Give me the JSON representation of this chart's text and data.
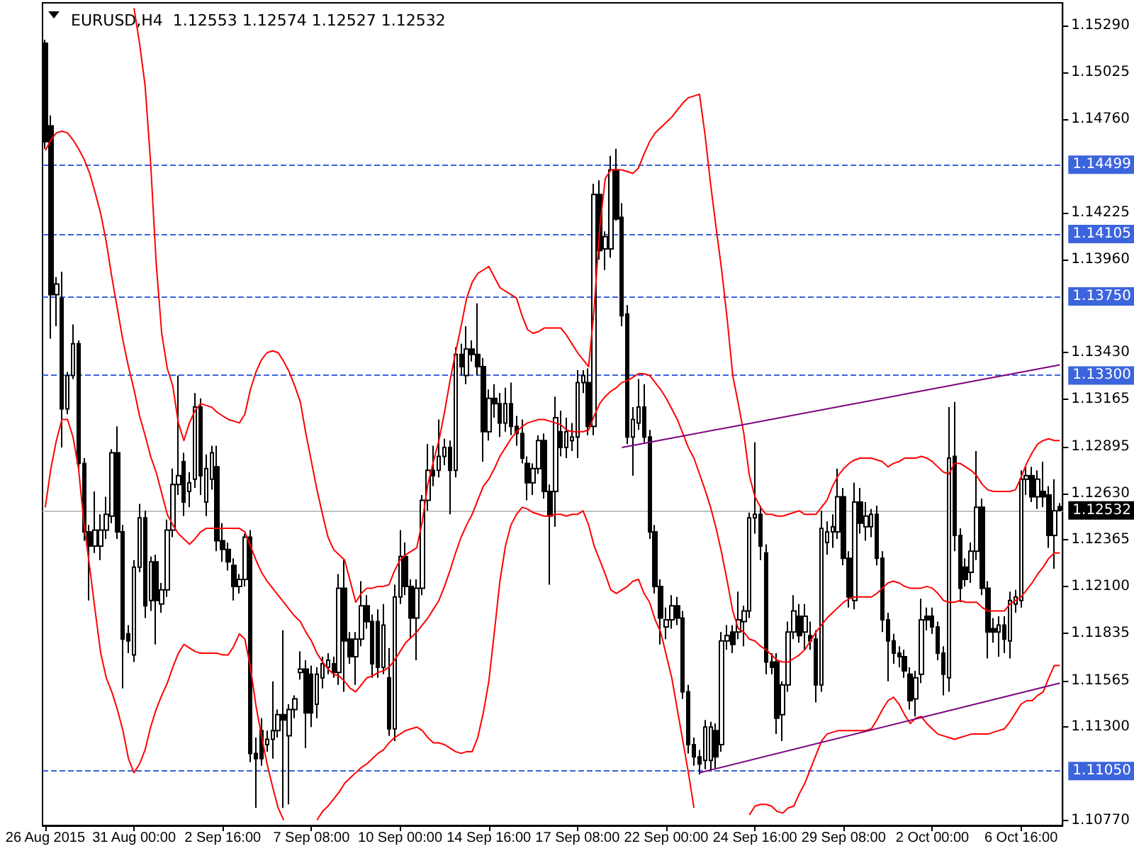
{
  "chart_data": {
    "type": "candlestick",
    "title": "EURUSD,H4  1.12553 1.12574 1.12527 1.12532",
    "color": "#000000",
    "marker": "none",
    "categories": [
      "26 Aug 2015",
      null,
      null,
      null,
      null,
      null,
      null,
      null,
      null,
      null,
      null,
      null,
      null,
      null,
      null,
      null,
      "31 Aug 00:00",
      null,
      null,
      null,
      null,
      null,
      null,
      null,
      null,
      null,
      null,
      null,
      null,
      null,
      null,
      null,
      "2 Sep 16:00",
      null,
      null,
      null,
      null,
      null,
      null,
      null,
      null,
      null,
      null,
      null,
      null,
      null,
      null,
      null,
      "7 Sep 08:00",
      null,
      null,
      null,
      null,
      null,
      null,
      null,
      null,
      null,
      null,
      null,
      null,
      null,
      null,
      null,
      "10 Sep 00:00",
      null,
      null,
      null,
      null,
      null,
      null,
      null,
      null,
      null,
      null,
      null,
      null,
      null,
      null,
      null,
      "14 Sep 16:00",
      null,
      null,
      null,
      null,
      null,
      null,
      null,
      null,
      null,
      null,
      null,
      null,
      null,
      null,
      null,
      "17 Sep 08:00",
      null,
      null,
      null,
      null,
      null,
      null,
      null,
      null,
      null,
      null,
      null,
      null,
      null,
      null,
      null,
      "22 Sep 00:00",
      null,
      null,
      null,
      null,
      null,
      null,
      null,
      null,
      null,
      null,
      null,
      null,
      null,
      null,
      null,
      "24 Sep 16:00",
      null,
      null,
      null,
      null,
      null,
      null,
      null,
      null,
      null,
      null,
      null,
      null,
      null,
      null,
      null,
      "29 Sep 08:00",
      null,
      null,
      null,
      null,
      null,
      null,
      null,
      null,
      null,
      null,
      null,
      null,
      null,
      null,
      null,
      "2 Oct 00:00",
      null,
      null,
      null,
      null,
      null,
      null,
      null,
      null,
      null,
      null,
      null,
      null,
      null,
      null,
      null,
      "6 Oct 16:00",
      null,
      null,
      null,
      null,
      null,
      null,
      null
    ],
    "ohlc": [
      [
        1.1519,
        1.1521,
        1.1459,
        1.1463
      ],
      [
        1.1472,
        1.1478,
        1.1351,
        1.1376
      ],
      [
        1.1376,
        1.1386,
        1.1358,
        1.1382
      ],
      [
        1.1374,
        1.1389,
        1.1289,
        1.1311
      ],
      [
        1.1311,
        1.1332,
        1.1308,
        1.133
      ],
      [
        1.133,
        1.1359,
        1.1328,
        1.1348
      ],
      [
        1.1348,
        1.135,
        1.1277,
        1.128
      ],
      [
        1.128,
        1.1283,
        1.1236,
        1.1241
      ],
      [
        1.1241,
        1.1245,
        1.1202,
        1.1233
      ],
      [
        1.1233,
        1.1264,
        1.1229,
        1.1242
      ],
      [
        1.1233,
        1.1251,
        1.1225,
        1.1242
      ],
      [
        1.1242,
        1.1261,
        1.1237,
        1.1251
      ],
      [
        1.125,
        1.1288,
        1.1246,
        1.1286
      ],
      [
        1.1286,
        1.1301,
        1.1237,
        1.1241
      ],
      [
        1.1241,
        1.1245,
        1.1152,
        1.118
      ],
      [
        1.1183,
        1.1188,
        1.1172,
        1.1179
      ],
      [
        1.1171,
        1.1225,
        1.1167,
        1.1221
      ],
      [
        1.1221,
        1.1257,
        1.1218,
        1.1249
      ],
      [
        1.1249,
        1.1253,
        1.1192,
        1.1199
      ],
      [
        1.1202,
        1.1227,
        1.1196,
        1.1224
      ],
      [
        1.1224,
        1.1228,
        1.1177,
        1.1202
      ],
      [
        1.12,
        1.1212,
        1.1195,
        1.1208
      ],
      [
        1.1208,
        1.1248,
        1.1204,
        1.1242
      ],
      [
        1.1242,
        1.1277,
        1.1238,
        1.1268
      ],
      [
        1.1268,
        1.133,
        1.1262,
        1.1273
      ],
      [
        1.1281,
        1.1286,
        1.125,
        1.1258
      ],
      [
        1.1264,
        1.1275,
        1.1255,
        1.1269
      ],
      [
        1.1271,
        1.132,
        1.1266,
        1.1312
      ],
      [
        1.1312,
        1.1317,
        1.1262,
        1.1273
      ],
      [
        1.1258,
        1.1285,
        1.125,
        1.1277
      ],
      [
        1.1271,
        1.129,
        1.1265,
        1.1286
      ],
      [
        1.1278,
        1.129,
        1.123,
        1.1236
      ],
      [
        1.1236,
        1.1246,
        1.1224,
        1.1231
      ],
      [
        1.1231,
        1.1235,
        1.1219,
        1.1224
      ],
      [
        1.1222,
        1.1226,
        1.1202,
        1.121
      ],
      [
        1.121,
        1.1217,
        1.1206,
        1.1214
      ],
      [
        1.1214,
        1.124,
        1.121,
        1.1238
      ],
      [
        1.1238,
        1.1242,
        1.111,
        1.1115
      ],
      [
        1.1115,
        1.1124,
        1.1084,
        1.1112
      ],
      [
        1.1128,
        1.1135,
        1.1108,
        1.1112
      ],
      [
        1.112,
        1.1128,
        1.1116,
        1.1123
      ],
      [
        1.1123,
        1.1156,
        1.1112,
        1.1128
      ],
      [
        1.1128,
        1.114,
        1.1124,
        1.1137
      ],
      [
        1.1137,
        1.1185,
        1.1084,
        1.1134
      ],
      [
        1.1125,
        1.1143,
        1.1086,
        1.114
      ],
      [
        1.114,
        1.1148,
        1.1135,
        1.1146
      ],
      [
        1.1161,
        1.1173,
        1.1157,
        1.1163
      ],
      [
        1.1163,
        1.1168,
        1.1118,
        1.1138
      ],
      [
        1.116,
        1.1165,
        1.113,
        1.1138
      ],
      [
        1.1143,
        1.1164,
        1.1135,
        1.116
      ],
      [
        1.1158,
        1.117,
        1.1152,
        1.1166
      ],
      [
        1.1164,
        1.1172,
        1.116,
        1.1168
      ],
      [
        1.1166,
        1.117,
        1.1158,
        1.1161
      ],
      [
        1.1161,
        1.1217,
        1.1154,
        1.1209
      ],
      [
        1.1209,
        1.1225,
        1.115,
        1.1179
      ],
      [
        1.118,
        1.1184,
        1.1166,
        1.117
      ],
      [
        1.117,
        1.1184,
        1.1154,
        1.118
      ],
      [
        1.118,
        1.1213,
        1.1176,
        1.1199
      ],
      [
        1.1199,
        1.1205,
        1.1186,
        1.119
      ],
      [
        1.119,
        1.1194,
        1.1158,
        1.1166
      ],
      [
        1.119,
        1.1197,
        1.1158,
        1.1164
      ],
      [
        1.1164,
        1.12,
        1.116,
        1.1188
      ],
      [
        1.1158,
        1.1175,
        1.1125,
        1.1129
      ],
      [
        1.1129,
        1.1211,
        1.1122,
        1.1204
      ],
      [
        1.1204,
        1.1242,
        1.12,
        1.1227
      ],
      [
        1.1227,
        1.1235,
        1.1205,
        1.121
      ],
      [
        1.121,
        1.1214,
        1.118,
        1.1192
      ],
      [
        1.1192,
        1.1214,
        1.1168,
        1.1209
      ],
      [
        1.1209,
        1.1262,
        1.1205,
        1.1259
      ],
      [
        1.1259,
        1.1291,
        1.1253,
        1.1276
      ],
      [
        1.1276,
        1.129,
        1.1267,
        1.1273
      ],
      [
        1.1276,
        1.1305,
        1.1272,
        1.1284
      ],
      [
        1.1284,
        1.1294,
        1.1279,
        1.1289
      ],
      [
        1.1289,
        1.1293,
        1.1251,
        1.1276
      ],
      [
        1.1276,
        1.1346,
        1.1272,
        1.1342
      ],
      [
        1.1342,
        1.1348,
        1.133,
        1.1335
      ],
      [
        1.133,
        1.1358,
        1.1325,
        1.1345
      ],
      [
        1.1345,
        1.135,
        1.1338,
        1.1342
      ],
      [
        1.1342,
        1.1371,
        1.133,
        1.1335
      ],
      [
        1.1335,
        1.134,
        1.1281,
        1.1298
      ],
      [
        1.1298,
        1.1322,
        1.1293,
        1.1317
      ],
      [
        1.1317,
        1.1325,
        1.1306,
        1.1314
      ],
      [
        1.1314,
        1.132,
        1.1295,
        1.1303
      ],
      [
        1.1303,
        1.1323,
        1.1298,
        1.1314
      ],
      [
        1.1314,
        1.1326,
        1.1296,
        1.1301
      ],
      [
        1.1301,
        1.1307,
        1.129,
        1.1297
      ],
      [
        1.1297,
        1.1305,
        1.128,
        1.1283
      ],
      [
        1.128,
        1.1284,
        1.1259,
        1.1269
      ],
      [
        1.1269,
        1.128,
        1.1262,
        1.1277
      ],
      [
        1.1277,
        1.1296,
        1.1274,
        1.1293
      ],
      [
        1.1293,
        1.1297,
        1.126,
        1.1264
      ],
      [
        1.1264,
        1.1268,
        1.1211,
        1.125
      ],
      [
        1.1264,
        1.1318,
        1.1244,
        1.1306
      ],
      [
        1.1298,
        1.131,
        1.1284,
        1.1289
      ],
      [
        1.1289,
        1.1306,
        1.1283,
        1.1298
      ],
      [
        1.1293,
        1.1303,
        1.1287,
        1.1295
      ],
      [
        1.1295,
        1.1333,
        1.1283,
        1.1326
      ],
      [
        1.1326,
        1.1333,
        1.132,
        1.133
      ],
      [
        1.1326,
        1.1334,
        1.1296,
        1.1301
      ],
      [
        1.1301,
        1.1439,
        1.1296,
        1.1433
      ],
      [
        1.1433,
        1.1441,
        1.1396,
        1.1401
      ],
      [
        1.1402,
        1.1412,
        1.139,
        1.1409
      ],
      [
        1.1402,
        1.1455,
        1.1397,
        1.1447
      ],
      [
        1.1447,
        1.1459,
        1.1418,
        1.1419
      ],
      [
        1.142,
        1.1428,
        1.1358,
        1.1364
      ],
      [
        1.1365,
        1.137,
        1.1291,
        1.1295
      ],
      [
        1.1295,
        1.1312,
        1.1273,
        1.1305
      ],
      [
        1.1303,
        1.1328,
        1.1299,
        1.1312
      ],
      [
        1.1312,
        1.1325,
        1.1292,
        1.1295
      ],
      [
        1.1295,
        1.1299,
        1.1237,
        1.1241
      ],
      [
        1.1241,
        1.1245,
        1.1206,
        1.121
      ],
      [
        1.121,
        1.1214,
        1.1177,
        1.1192
      ],
      [
        1.1187,
        1.1198,
        1.118,
        1.1191
      ],
      [
        1.1191,
        1.1205,
        1.1186,
        1.1199
      ],
      [
        1.1199,
        1.1204,
        1.1188,
        1.1192
      ],
      [
        1.1192,
        1.1196,
        1.1146,
        1.115
      ],
      [
        1.115,
        1.1154,
        1.1115,
        1.112
      ],
      [
        1.112,
        1.1124,
        1.1108,
        1.1113
      ],
      [
        1.1113,
        1.1117,
        1.1103,
        1.1109
      ],
      [
        1.1111,
        1.1134,
        1.1106,
        1.113
      ],
      [
        1.1111,
        1.1133,
        1.1105,
        1.113
      ],
      [
        1.1128,
        1.1132,
        1.1106,
        1.1113
      ],
      [
        1.112,
        1.1184,
        1.1116,
        1.1179
      ],
      [
        1.1179,
        1.1188,
        1.1174,
        1.1182
      ],
      [
        1.1184,
        1.1188,
        1.1172,
        1.1177
      ],
      [
        1.1184,
        1.1207,
        1.118,
        1.1191
      ],
      [
        1.119,
        1.1199,
        1.1176,
        1.1196
      ],
      [
        1.1196,
        1.1252,
        1.1192,
        1.1249
      ],
      [
        1.1249,
        1.1292,
        1.124,
        1.1251
      ],
      [
        1.1251,
        1.1256,
        1.1225,
        1.1233
      ],
      [
        1.1229,
        1.1234,
        1.116,
        1.1167
      ],
      [
        1.1167,
        1.1172,
        1.116,
        1.1164
      ],
      [
        1.1167,
        1.1172,
        1.1126,
        1.1135
      ],
      [
        1.1137,
        1.1156,
        1.1122,
        1.1154
      ],
      [
        1.1154,
        1.119,
        1.115,
        1.1184
      ],
      [
        1.1184,
        1.1205,
        1.118,
        1.1196
      ],
      [
        1.1193,
        1.12,
        1.1178,
        1.1182
      ],
      [
        1.1184,
        1.12,
        1.1174,
        1.1193
      ],
      [
        1.1182,
        1.119,
        1.1174,
        1.1179
      ],
      [
        1.118,
        1.1185,
        1.1144,
        1.1154
      ],
      [
        1.1154,
        1.1253,
        1.115,
        1.1243
      ],
      [
        1.1235,
        1.1247,
        1.1228,
        1.1241
      ],
      [
        1.1241,
        1.1251,
        1.1232,
        1.1244
      ],
      [
        1.1241,
        1.1277,
        1.1237,
        1.1261
      ],
      [
        1.1261,
        1.1266,
        1.1222,
        1.1226
      ],
      [
        1.1226,
        1.123,
        1.1198,
        1.1204
      ],
      [
        1.1202,
        1.1269,
        1.1197,
        1.1258
      ],
      [
        1.1258,
        1.1266,
        1.124,
        1.1246
      ],
      [
        1.1244,
        1.1258,
        1.1236,
        1.125
      ],
      [
        1.1244,
        1.1254,
        1.1238,
        1.1251
      ],
      [
        1.1251,
        1.1256,
        1.1222,
        1.1226
      ],
      [
        1.1226,
        1.123,
        1.1184,
        1.1191
      ],
      [
        1.1191,
        1.1195,
        1.1156,
        1.1179
      ],
      [
        1.1179,
        1.1183,
        1.1166,
        1.1172
      ],
      [
        1.1172,
        1.1176,
        1.1164,
        1.117
      ],
      [
        1.117,
        1.1174,
        1.1158,
        1.1162
      ],
      [
        1.116,
        1.1164,
        1.114,
        1.1145
      ],
      [
        1.1146,
        1.1162,
        1.1136,
        1.1158
      ],
      [
        1.116,
        1.1203,
        1.1155,
        1.1191
      ],
      [
        1.1193,
        1.1198,
        1.1185,
        1.1191
      ],
      [
        1.1193,
        1.1198,
        1.1183,
        1.1187
      ],
      [
        1.1187,
        1.119,
        1.1168,
        1.1172
      ],
      [
        1.1172,
        1.1176,
        1.1148,
        1.116
      ],
      [
        1.1158,
        1.1312,
        1.115,
        1.1283
      ],
      [
        1.1284,
        1.1315,
        1.123,
        1.1239
      ],
      [
        1.1239,
        1.1243,
        1.1201,
        1.1209
      ],
      [
        1.1221,
        1.1226,
        1.121,
        1.1214
      ],
      [
        1.1218,
        1.1235,
        1.1212,
        1.123
      ],
      [
        1.123,
        1.1287,
        1.1225,
        1.1255
      ],
      [
        1.1255,
        1.126,
        1.1205,
        1.1209
      ],
      [
        1.1209,
        1.1213,
        1.1169,
        1.1184
      ],
      [
        1.1186,
        1.1192,
        1.1178,
        1.1184
      ],
      [
        1.1184,
        1.1193,
        1.117,
        1.1188
      ],
      [
        1.1188,
        1.1193,
        1.1172,
        1.118
      ],
      [
        1.1179,
        1.1207,
        1.1169,
        1.1202
      ],
      [
        1.12,
        1.1208,
        1.1195,
        1.1204
      ],
      [
        1.1202,
        1.1276,
        1.1198,
        1.1271
      ],
      [
        1.1271,
        1.1278,
        1.1262,
        1.1273
      ],
      [
        1.1273,
        1.1278,
        1.1258,
        1.1261
      ],
      [
        1.1261,
        1.1276,
        1.1254,
        1.1271
      ],
      [
        1.1264,
        1.1281,
        1.1255,
        1.1261
      ],
      [
        1.1262,
        1.1267,
        1.1232,
        1.1239
      ],
      [
        1.1239,
        1.1271,
        1.122,
        1.1253
      ],
      [
        1.12553,
        1.12574,
        1.12527,
        1.12532
      ]
    ],
    "series": [
      {
        "type": "line",
        "color": "#ff0000",
        "values": [
          null,
          null,
          null,
          null,
          null,
          null,
          null,
          null,
          null,
          null,
          null,
          null,
          null,
          null,
          null,
          null,
          1.1539,
          1.1519,
          1.1495,
          1.1451,
          1.1394,
          1.1354,
          1.1334,
          1.1324,
          1.1303,
          1.1293,
          1.1303,
          1.131,
          1.1314,
          1.1313,
          1.1312,
          1.1309,
          1.1307,
          1.1305,
          1.1304,
          1.1303,
          1.1308,
          1.1322,
          1.1332,
          1.1339,
          1.1343,
          1.1344,
          1.1343,
          1.1338,
          1.1332,
          1.1324,
          1.1315,
          1.1297,
          1.1281,
          1.1265,
          1.1251,
          1.1238,
          1.1231,
          1.1228,
          1.1225,
          1.1213,
          1.1201,
          1.1206,
          1.1209,
          1.1209,
          1.121,
          1.121,
          1.1211,
          1.1219,
          1.1225,
          1.1228,
          1.123,
          1.1232,
          1.1247,
          1.1268,
          1.1281,
          1.1293,
          1.1309,
          1.1327,
          1.1343,
          1.1358,
          1.1374,
          1.1383,
          1.1388,
          1.139,
          1.1392,
          1.1386,
          1.138,
          1.1378,
          1.1376,
          1.1374,
          1.1364,
          1.1356,
          1.1354,
          1.1355,
          1.1357,
          1.1357,
          1.1357,
          1.1357,
          1.1353,
          1.1348,
          1.1343,
          1.1339,
          1.1335,
          1.1368,
          1.1414,
          1.1442,
          1.1447,
          1.1447,
          1.1447,
          1.1446,
          1.1445,
          1.1448,
          1.1456,
          1.1463,
          1.1468,
          1.1471,
          1.1474,
          1.1477,
          1.1481,
          1.1485,
          1.1488,
          1.1489,
          1.149,
          1.1467,
          1.1439,
          1.1414,
          1.139,
          1.1362,
          1.133,
          1.1314,
          1.1297,
          1.1273,
          1.1261,
          1.1255,
          1.1251,
          1.1251,
          1.125,
          1.125,
          1.1251,
          1.1252,
          1.1253,
          1.1251,
          1.1251,
          1.1251,
          1.1255,
          1.1259,
          1.1267,
          1.1273,
          1.1277,
          1.128,
          1.1282,
          1.1283,
          1.1283,
          1.1283,
          1.1282,
          1.1281,
          1.1278,
          1.128,
          1.1281,
          1.1283,
          1.1283,
          1.1283,
          1.1284,
          1.1283,
          1.1281,
          1.1278,
          1.1275,
          1.1274,
          1.128,
          1.128,
          1.1278,
          1.1276,
          1.1273,
          1.1268,
          1.1265,
          1.1264,
          1.1264,
          1.1264,
          1.1264,
          1.1265,
          1.1272,
          1.128,
          1.1286,
          1.1291,
          1.1293,
          1.1294,
          1.1293,
          1.1293
        ]
      },
      {
        "type": "line",
        "color": "#ff0000",
        "values": [
          1.1458,
          1.1464,
          1.1468,
          1.1469,
          1.1468,
          1.1464,
          1.1459,
          1.1453,
          1.1445,
          1.1434,
          1.1422,
          1.1406,
          1.1386,
          1.1368,
          1.135,
          1.1335,
          1.1322,
          1.1307,
          1.1296,
          1.1284,
          1.1275,
          1.1263,
          1.1251,
          1.1245,
          1.124,
          1.1237,
          1.1234,
          1.1237,
          1.1241,
          1.1243,
          1.1243,
          1.1243,
          1.1243,
          1.1243,
          1.1243,
          1.1243,
          1.1241,
          1.1233,
          1.1225,
          1.1218,
          1.1213,
          1.1209,
          1.1205,
          1.1201,
          1.1197,
          1.1193,
          1.119,
          1.1184,
          1.1179,
          1.1172,
          1.1167,
          1.1163,
          1.116,
          1.1159,
          1.1156,
          1.1152,
          1.115,
          1.1154,
          1.1158,
          1.1159,
          1.1161,
          1.1162,
          1.1164,
          1.1168,
          1.1173,
          1.1178,
          1.1181,
          1.1184,
          1.1188,
          1.1192,
          1.1197,
          1.1202,
          1.121,
          1.1219,
          1.1229,
          1.1238,
          1.1245,
          1.1251,
          1.1259,
          1.1267,
          1.1271,
          1.1277,
          1.1284,
          1.1289,
          1.1294,
          1.1298,
          1.1301,
          1.1303,
          1.1304,
          1.1305,
          1.1305,
          1.1304,
          1.1303,
          1.1302,
          1.1299,
          1.1298,
          1.1298,
          1.1298,
          1.1299,
          1.1307,
          1.1314,
          1.1318,
          1.1321,
          1.1323,
          1.1326,
          1.1327,
          1.1329,
          1.1331,
          1.1331,
          1.133,
          1.1326,
          1.1322,
          1.1317,
          1.1311,
          1.1305,
          1.1297,
          1.1289,
          1.1283,
          1.1274,
          1.1265,
          1.1255,
          1.1243,
          1.1229,
          1.1213,
          1.1196,
          1.1186,
          1.1184,
          1.118,
          1.1179,
          1.1176,
          1.1174,
          1.1171,
          1.1168,
          1.1167,
          1.1167,
          1.1169,
          1.1171,
          1.1174,
          1.1179,
          1.1184,
          1.1188,
          1.1192,
          1.1195,
          1.1198,
          1.1201,
          1.1203,
          1.1204,
          1.1204,
          1.1204,
          1.1204,
          1.1206,
          1.1209,
          1.1212,
          1.1213,
          1.1212,
          1.121,
          1.1209,
          1.1209,
          1.1209,
          1.121,
          1.1209,
          1.1206,
          1.1202,
          1.1201,
          1.1201,
          1.1202,
          1.1201,
          1.1201,
          1.1201,
          1.1198,
          1.1196,
          1.1196,
          1.1196,
          1.1196,
          1.12,
          1.1202,
          1.1204,
          1.1208,
          1.1212,
          1.1217,
          1.1221,
          1.1226,
          1.1229,
          1.1229
        ]
      },
      {
        "type": "line",
        "color": "#ff0000",
        "values": [
          1.1255,
          1.1277,
          1.1293,
          1.1305,
          1.1305,
          1.1295,
          1.1277,
          1.1245,
          1.1221,
          1.1196,
          1.1172,
          1.1158,
          1.115,
          1.114,
          1.1128,
          1.1112,
          1.1104,
          1.1109,
          1.1117,
          1.113,
          1.114,
          1.1148,
          1.1155,
          1.1164,
          1.1172,
          1.1177,
          1.1175,
          1.1173,
          1.1172,
          1.1172,
          1.1172,
          1.1172,
          1.1171,
          1.1171,
          1.1176,
          1.1183,
          1.118,
          1.1164,
          1.1142,
          1.1125,
          1.1109,
          1.1096,
          1.1084,
          1.1077,
          null,
          null,
          null,
          null,
          null,
          1.1077,
          1.1082,
          1.1085,
          1.1089,
          1.1093,
          1.1098,
          1.1101,
          1.1104,
          1.1107,
          1.1109,
          1.1112,
          1.1115,
          1.1117,
          1.1121,
          1.1124,
          1.1126,
          1.1128,
          1.1129,
          1.113,
          1.1128,
          1.1124,
          1.1121,
          1.1121,
          1.112,
          1.1118,
          1.1116,
          1.1115,
          1.1116,
          1.1116,
          1.1124,
          1.1138,
          1.1156,
          1.1184,
          1.1213,
          1.1233,
          1.1245,
          1.1251,
          1.1255,
          1.1254,
          1.1252,
          1.1251,
          1.125,
          1.125,
          1.1251,
          1.1251,
          1.125,
          1.1251,
          1.1251,
          1.1253,
          1.1245,
          1.1233,
          1.1225,
          1.1217,
          1.1208,
          1.1206,
          1.1208,
          1.121,
          1.1213,
          1.1214,
          1.1206,
          1.1201,
          1.1191,
          1.1184,
          1.1171,
          1.1158,
          1.114,
          1.1122,
          1.1104,
          1.1084,
          null,
          null,
          null,
          null,
          null,
          null,
          null,
          null,
          null,
          1.108,
          1.1085,
          1.1086,
          1.1086,
          1.1085,
          1.1082,
          1.1081,
          1.1084,
          1.1085,
          1.1092,
          1.1098,
          1.1106,
          1.1114,
          1.1122,
          1.1126,
          1.1127,
          1.1128,
          1.1128,
          1.1128,
          1.1128,
          1.1128,
          1.1128,
          1.1129,
          1.1134,
          1.114,
          1.1145,
          1.1147,
          1.1143,
          1.1137,
          1.1132,
          1.1135,
          1.1136,
          1.1132,
          1.1129,
          1.1126,
          1.1125,
          1.1124,
          1.1123,
          1.1124,
          1.1125,
          1.1126,
          1.1126,
          1.1126,
          1.1126,
          1.1127,
          1.1128,
          1.1129,
          1.1133,
          1.1138,
          1.1143,
          1.1145,
          1.1145,
          1.1148,
          1.115,
          1.1158,
          1.1165,
          1.1165
        ]
      },
      {
        "type": "line",
        "color": "#800080",
        "values": [
          null,
          null,
          null,
          null,
          null,
          null,
          null,
          null,
          null,
          null,
          null,
          null,
          null,
          null,
          null,
          null,
          null,
          null,
          null,
          null,
          null,
          null,
          null,
          null,
          null,
          null,
          null,
          null,
          null,
          null,
          null,
          null,
          null,
          null,
          null,
          null,
          null,
          null,
          null,
          null,
          null,
          null,
          null,
          null,
          null,
          null,
          null,
          null,
          null,
          null,
          null,
          null,
          null,
          null,
          null,
          null,
          null,
          null,
          null,
          null,
          null,
          null,
          null,
          null,
          null,
          null,
          null,
          null,
          null,
          null,
          null,
          null,
          null,
          null,
          null,
          null,
          null,
          null,
          null,
          null,
          null,
          null,
          null,
          null,
          null,
          null,
          null,
          null,
          null,
          null,
          null,
          null,
          null,
          null,
          null,
          null,
          null,
          null,
          null,
          null,
          null,
          null,
          null,
          null,
          1.1289,
          null,
          null,
          null,
          null,
          null,
          null,
          null,
          null,
          null,
          null,
          null,
          null,
          null,
          null,
          null,
          null,
          null,
          null,
          null,
          null,
          null,
          null,
          null,
          null,
          null,
          null,
          null,
          null,
          null,
          null,
          null,
          null,
          null,
          null,
          null,
          null,
          null,
          null,
          null,
          null,
          null,
          null,
          null,
          null,
          null,
          null,
          null,
          null,
          null,
          null,
          null,
          null,
          null,
          null,
          null,
          null,
          null,
          null,
          null,
          null,
          null,
          null,
          null,
          null,
          null,
          null,
          null,
          null,
          null,
          null,
          null,
          null,
          null,
          null,
          null,
          null,
          null,
          null,
          1.1336
        ]
      },
      {
        "type": "line",
        "color": "#800080",
        "values": [
          null,
          null,
          null,
          null,
          null,
          null,
          null,
          null,
          null,
          null,
          null,
          null,
          null,
          null,
          null,
          null,
          null,
          null,
          null,
          null,
          null,
          null,
          null,
          null,
          null,
          null,
          null,
          null,
          null,
          null,
          null,
          null,
          null,
          null,
          null,
          null,
          null,
          null,
          null,
          null,
          null,
          null,
          null,
          null,
          null,
          null,
          null,
          null,
          null,
          null,
          null,
          null,
          null,
          null,
          null,
          null,
          null,
          null,
          null,
          null,
          null,
          null,
          null,
          null,
          null,
          null,
          null,
          null,
          null,
          null,
          null,
          null,
          null,
          null,
          null,
          null,
          null,
          null,
          null,
          null,
          null,
          null,
          null,
          null,
          null,
          null,
          null,
          null,
          null,
          null,
          null,
          null,
          null,
          null,
          null,
          null,
          null,
          null,
          null,
          null,
          null,
          null,
          null,
          null,
          null,
          null,
          null,
          null,
          null,
          null,
          null,
          null,
          null,
          null,
          null,
          null,
          null,
          null,
          1.1104,
          null,
          null,
          null,
          null,
          null,
          null,
          null,
          null,
          null,
          null,
          null,
          null,
          null,
          null,
          null,
          null,
          null,
          null,
          null,
          null,
          null,
          null,
          null,
          null,
          null,
          null,
          null,
          null,
          null,
          null,
          null,
          null,
          null,
          null,
          null,
          null,
          null,
          null,
          null,
          null,
          null,
          null,
          null,
          null,
          null,
          null,
          null,
          null,
          null,
          null,
          null,
          null,
          null,
          null,
          null,
          null,
          null,
          null,
          null,
          null,
          null,
          null,
          null,
          null,
          1.1155
        ]
      }
    ],
    "ylim": [
      1.1074,
      1.1542
    ],
    "yticks": [
      {
        "value": 1.1529,
        "label": "1.15290"
      },
      {
        "value": 1.15025,
        "label": "1.15025"
      },
      {
        "value": 1.1476,
        "label": "1.14760"
      },
      {
        "value": 1.14225,
        "label": "1.14225"
      },
      {
        "value": 1.1396,
        "label": "1.13960"
      },
      {
        "value": 1.1343,
        "label": "1.13430"
      },
      {
        "value": 1.13165,
        "label": "1.13165"
      },
      {
        "value": 1.12895,
        "label": "1.12895"
      },
      {
        "value": 1.1263,
        "label": "1.12630"
      },
      {
        "value": 1.12365,
        "label": "1.12365"
      },
      {
        "value": 1.121,
        "label": "1.12100"
      },
      {
        "value": 1.11835,
        "label": "1.11835"
      },
      {
        "value": 1.11565,
        "label": "1.11565"
      },
      {
        "value": 1.113,
        "label": "1.11300"
      },
      {
        "value": 1.1077,
        "label": "1.10770"
      }
    ],
    "ref_lines": [
      {
        "axis": "y",
        "value": 1.14499,
        "label": "1.14499",
        "color": "#3c64dc",
        "line_style": "dashed"
      },
      {
        "axis": "y",
        "value": 1.14105,
        "label": "1.14105",
        "color": "#3c64dc",
        "line_style": "dashed"
      },
      {
        "axis": "y",
        "value": 1.1375,
        "label": "1.13750",
        "color": "#3c64dc",
        "line_style": "dashed"
      },
      {
        "axis": "y",
        "value": 1.133,
        "label": "1.13300",
        "color": "#3c64dc",
        "line_style": "dashed"
      },
      {
        "axis": "y",
        "value": 1.1105,
        "label": "1.11050",
        "color": "#3c64dc",
        "line_style": "dashed"
      },
      {
        "axis": "y",
        "value": 1.12532,
        "label": "1.12532",
        "color": "#c0c0c0",
        "line_style": "solid"
      }
    ]
  }
}
